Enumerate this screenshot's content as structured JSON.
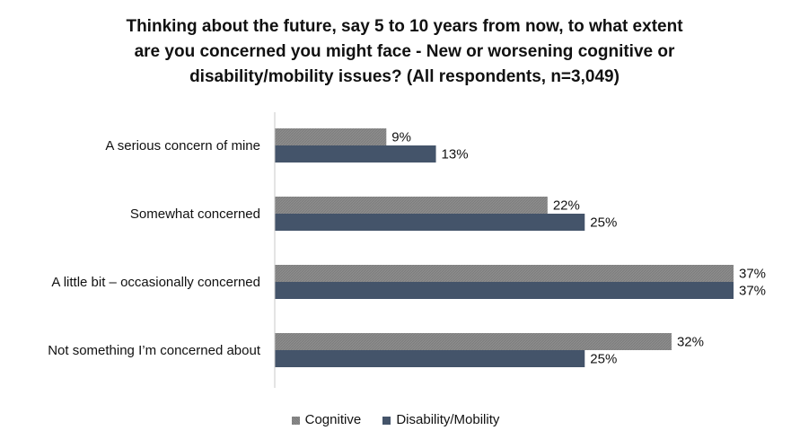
{
  "chart_data": {
    "type": "bar",
    "orientation": "horizontal",
    "title_lines": [
      "Thinking about the future, say 5 to 10 years from now, to what extent",
      "are you concerned you might face - New or worsening cognitive or",
      "disability/mobility issues? (All respondents, n=3,049)"
    ],
    "categories": [
      "A serious concern of mine",
      "Somewhat concerned",
      "A little bit – occasionally concerned",
      "Not something I’m concerned about"
    ],
    "series": [
      {
        "name": "Cognitive",
        "values": [
          9,
          22,
          37,
          32
        ],
        "labels": [
          "9%",
          "22%",
          "37%",
          "32%"
        ],
        "color": "#8c8c8c",
        "pattern": "hatched"
      },
      {
        "name": "Disability/Mobility",
        "values": [
          13,
          25,
          37,
          25
        ],
        "labels": [
          "13%",
          "25%",
          "37%",
          "25%"
        ],
        "color": "#44546a",
        "pattern": "solid"
      }
    ],
    "xlim": [
      0,
      37
    ],
    "grid": false,
    "legend_position": "bottom"
  }
}
